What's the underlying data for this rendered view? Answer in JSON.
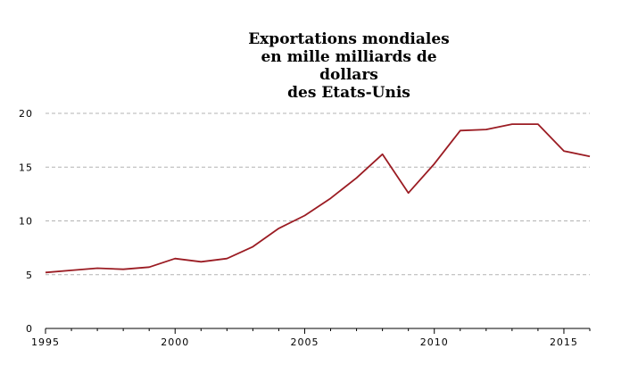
{
  "chart_data": {
    "type": "line",
    "title_lines": [
      "Exportations mondiales",
      "en mille milliards de",
      "dollars",
      "des Etats-Unis"
    ],
    "xlabel": "",
    "ylabel": "",
    "xlim": [
      1995,
      2016
    ],
    "ylim": [
      0,
      20
    ],
    "grid": true,
    "x_ticks": [
      1995,
      2000,
      2005,
      2010,
      2015
    ],
    "y_ticks": [
      0,
      5,
      10,
      15,
      20
    ],
    "series": [
      {
        "color": "#9b1c23",
        "x": [
          1995,
          1996,
          1997,
          1998,
          1999,
          2000,
          2001,
          2002,
          2003,
          2004,
          2005,
          2006,
          2007,
          2008,
          2009,
          2010,
          2011,
          2012,
          2013,
          2014,
          2015,
          2016
        ],
        "values": [
          5.2,
          5.4,
          5.6,
          5.5,
          5.7,
          6.5,
          6.2,
          6.5,
          7.6,
          9.3,
          10.5,
          12.1,
          14.0,
          16.2,
          12.6,
          15.3,
          18.4,
          18.5,
          19.0,
          19.0,
          16.5,
          16.0
        ]
      }
    ]
  }
}
